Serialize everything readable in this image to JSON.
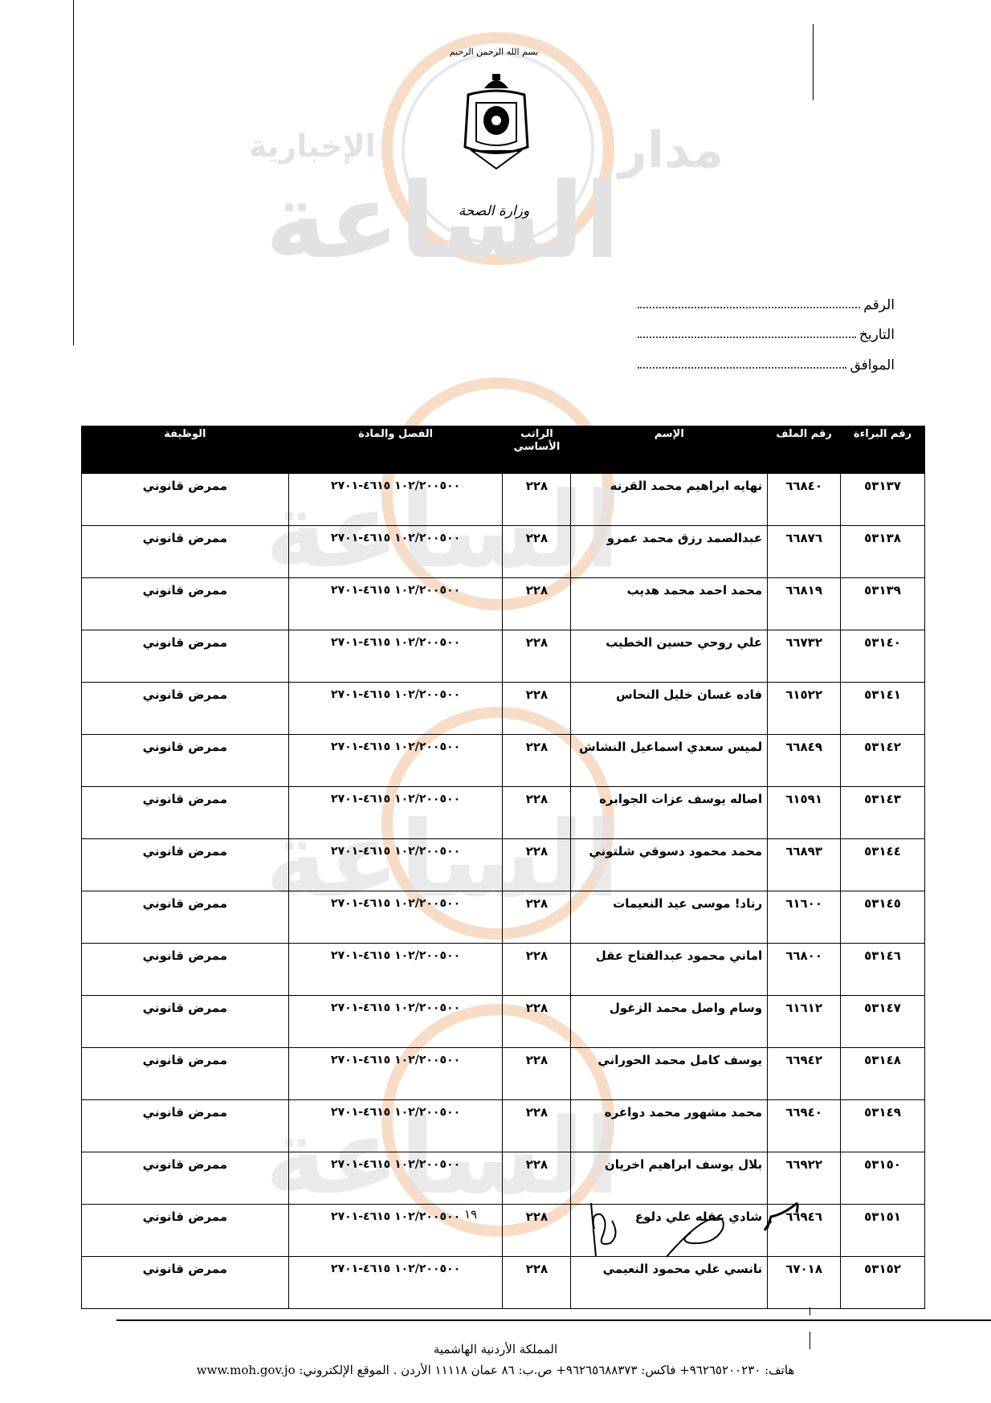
{
  "letterhead": {
    "basmala": "بسم الله الرحمن الرحيم",
    "ministry": "وزارة الصحة",
    "emblem_icon": "jordan-coat-of-arms-icon"
  },
  "watermark": {
    "text_small": "مدار",
    "text_sub": "الإخبارية",
    "text_big": "الساعة",
    "colors": {
      "ring": "#f7dcc6",
      "text": "#e2e2e2"
    }
  },
  "reference_fields": [
    {
      "label": "الرقم",
      "value": ""
    },
    {
      "label": "التاريخ",
      "value": ""
    },
    {
      "label": "الموافق",
      "value": ""
    }
  ],
  "table": {
    "headers": [
      "رقم البراءة",
      "رقم الملف",
      "الإسم",
      "الراتب الأساسي",
      "الفصل والمادة",
      "الوظيفة"
    ],
    "rows": [
      {
        "license": "٥٣١٣٧",
        "file": "٦٦٨٤٠",
        "name": "نهايه ابراهيم محمد القرنه",
        "salary": "٢٢٨",
        "chapter": "١٠٢/٢٠٠٥٠٠ ٤٦١٥-٢٧٠١",
        "job": "ممرض قانوني"
      },
      {
        "license": "٥٣١٣٨",
        "file": "٦٦٨٧٦",
        "name": "عبدالصمد رزق محمد عمرو",
        "salary": "٢٢٨",
        "chapter": "١٠٢/٢٠٠٥٠٠ ٤٦١٥-٢٧٠١",
        "job": "ممرض قانوني"
      },
      {
        "license": "٥٣١٣٩",
        "file": "٦٦٨١٩",
        "name": "محمد احمد محمد هديب",
        "salary": "٢٢٨",
        "chapter": "١٠٢/٢٠٠٥٠٠ ٤٦١٥-٢٧٠١",
        "job": "ممرض قانوني"
      },
      {
        "license": "٥٣١٤٠",
        "file": "٦٦٧٣٢",
        "name": "علي روحي حسين الخطيب",
        "salary": "٢٢٨",
        "chapter": "١٠٢/٢٠٠٥٠٠ ٤٦١٥-٢٧٠١",
        "job": "ممرض قانوني"
      },
      {
        "license": "٥٣١٤١",
        "file": "٦١٥٢٢",
        "name": "فاده غسان خليل النحاس",
        "salary": "٢٢٨",
        "chapter": "١٠٢/٢٠٠٥٠٠ ٤٦١٥-٢٧٠١",
        "job": "ممرض قانوني"
      },
      {
        "license": "٥٣١٤٢",
        "file": "٦٦٨٤٩",
        "name": "لميس سعدي اسماعيل النشاش",
        "salary": "٢٢٨",
        "chapter": "١٠٢/٢٠٠٥٠٠ ٤٦١٥-٢٧٠١",
        "job": "ممرض قانوني"
      },
      {
        "license": "٥٣١٤٣",
        "file": "٦١٥٩١",
        "name": "اصاله يوسف عزات الجوابره",
        "salary": "٢٢٨",
        "chapter": "١٠٢/٢٠٠٥٠٠ ٤٦١٥-٢٧٠١",
        "job": "ممرض قانوني"
      },
      {
        "license": "٥٣١٤٤",
        "file": "٦٦٨٩٣",
        "name": "محمد محمود دسوقي شلتوني",
        "salary": "٢٢٨",
        "chapter": "١٠٢/٢٠٠٥٠٠ ٤٦١٥-٢٧٠١",
        "job": "ممرض قانوني"
      },
      {
        "license": "٥٣١٤٥",
        "file": "٦١٦٠٠",
        "name": "رناد! موسى عيد النعيمات",
        "salary": "٢٢٨",
        "chapter": "١٠٢/٢٠٠٥٠٠ ٤٦١٥-٢٧٠١",
        "job": "ممرض قانوني"
      },
      {
        "license": "٥٣١٤٦",
        "file": "٦٦٨٠٠",
        "name": "اماني محمود عبدالفتاح عقل",
        "salary": "٢٢٨",
        "chapter": "١٠٢/٢٠٠٥٠٠ ٤٦١٥-٢٧٠١",
        "job": "ممرض قانوني"
      },
      {
        "license": "٥٣١٤٧",
        "file": "٦١٦١٢",
        "name": "وسام واصل محمد الزغول",
        "salary": "٢٢٨",
        "chapter": "١٠٢/٢٠٠٥٠٠ ٤٦١٥-٢٧٠١",
        "job": "ممرض قانوني"
      },
      {
        "license": "٥٣١٤٨",
        "file": "٦٦٩٤٢",
        "name": "يوسف كامل محمد الحوراني",
        "salary": "٢٢٨",
        "chapter": "١٠٢/٢٠٠٥٠٠ ٤٦١٥-٢٧٠١",
        "job": "ممرض قانوني"
      },
      {
        "license": "٥٣١٤٩",
        "file": "٦٦٩٤٠",
        "name": "محمد مشهور محمد دواغره",
        "salary": "٢٢٨",
        "chapter": "١٠٢/٢٠٠٥٠٠ ٤٦١٥-٢٧٠١",
        "job": "ممرض قانوني"
      },
      {
        "license": "٥٣١٥٠",
        "file": "٦٦٩٢٢",
        "name": "بلال يوسف ابراهيم اخريان",
        "salary": "٢٢٨",
        "chapter": "١٠٢/٢٠٠٥٠٠ ٤٦١٥-٢٧٠١",
        "job": "ممرض قانوني"
      },
      {
        "license": "٥٣١٥١",
        "file": "٦٦٩٤٦",
        "name": "شادي عقله علي دلوع",
        "salary": "٢٢٨",
        "chapter": "١٠٢/٢٠٠٥٠٠ ٤٦١٥-٢٧٠١",
        "job": "ممرض قانوني"
      },
      {
        "license": "٥٣١٥٢",
        "file": "٦٧٠١٨",
        "name": "نانسي علي محمود النعيمي",
        "salary": "٢٢٨",
        "chapter": "١٠٢/٢٠٠٥٠٠ ٤٦١٥-٢٧٠١",
        "job": "ممرض قانوني"
      }
    ]
  },
  "page_number": "١٩",
  "footer": {
    "country": "المملكة الأردنية الهاشمية",
    "contact": "هاتف: ٩٦٢٦٥٢٠٠٢٣٠+ فاكس: ٩٦٢٦٥٦٨٨٣٧٣+ ص.ب: ٨٦ عمان ١١١١٨ الأردن . الموقع الإلكتروني: www.moh.gov.jo"
  }
}
